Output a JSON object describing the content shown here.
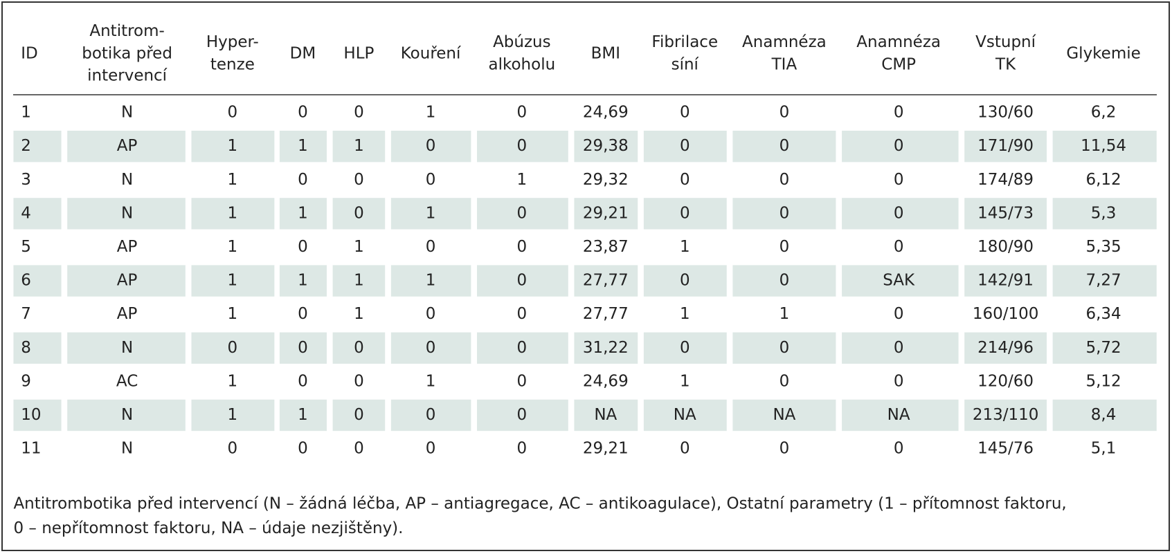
{
  "table": {
    "header": [
      [
        "ID"
      ],
      [
        "Antitrom-",
        "botika před",
        "intervencí"
      ],
      [
        "Hyper-",
        "tenze"
      ],
      [
        "DM"
      ],
      [
        "HLP"
      ],
      [
        "Kouření"
      ],
      [
        "Abúzus",
        "alkoholu"
      ],
      [
        "BMI"
      ],
      [
        "Fibrilace",
        "síní"
      ],
      [
        "Anamnéza",
        "TIA"
      ],
      [
        "Anamnéza",
        "CMP"
      ],
      [
        "Vstupní",
        "TK"
      ],
      [
        "Glykemie"
      ]
    ],
    "rows": [
      [
        "1",
        "N",
        "0",
        "0",
        "0",
        "1",
        "0",
        "24,69",
        "0",
        "0",
        "0",
        "130/60",
        "6,2"
      ],
      [
        "2",
        "AP",
        "1",
        "1",
        "1",
        "0",
        "0",
        "29,38",
        "0",
        "0",
        "0",
        "171/90",
        "11,54"
      ],
      [
        "3",
        "N",
        "1",
        "0",
        "0",
        "0",
        "1",
        "29,32",
        "0",
        "0",
        "0",
        "174/89",
        "6,12"
      ],
      [
        "4",
        "N",
        "1",
        "1",
        "0",
        "1",
        "0",
        "29,21",
        "0",
        "0",
        "0",
        "145/73",
        "5,3"
      ],
      [
        "5",
        "AP",
        "1",
        "0",
        "1",
        "0",
        "0",
        "23,87",
        "1",
        "0",
        "0",
        "180/90",
        "5,35"
      ],
      [
        "6",
        "AP",
        "1",
        "1",
        "1",
        "1",
        "0",
        "27,77",
        "0",
        "0",
        "SAK",
        "142/91",
        "7,27"
      ],
      [
        "7",
        "AP",
        "1",
        "0",
        "1",
        "0",
        "0",
        "27,77",
        "1",
        "1",
        "0",
        "160/100",
        "6,34"
      ],
      [
        "8",
        "N",
        "0",
        "0",
        "0",
        "0",
        "0",
        "31,22",
        "0",
        "0",
        "0",
        "214/96",
        "5,72"
      ],
      [
        "9",
        "AC",
        "1",
        "0",
        "0",
        "1",
        "0",
        "24,69",
        "1",
        "0",
        "0",
        "120/60",
        "5,12"
      ],
      [
        "10",
        "N",
        "1",
        "1",
        "0",
        "0",
        "0",
        "NA",
        "NA",
        "NA",
        "NA",
        "213/110",
        "8,4"
      ],
      [
        "11",
        "N",
        "0",
        "0",
        "0",
        "0",
        "0",
        "29,21",
        "0",
        "0",
        "0",
        "145/76",
        "5,1"
      ]
    ]
  },
  "footnote": [
    "Antitrombotika před intervencí (N – žádná léčba, AP – antiagregace, AC – antikoagulace), Ostatní parametry (1 – přítomnost faktoru,",
    "0 – nepřítomnost faktoru, NA – údaje nezjištěny)."
  ]
}
